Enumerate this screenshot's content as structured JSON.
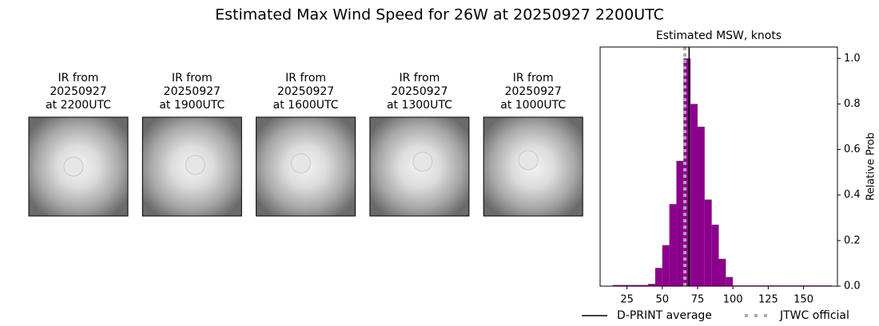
{
  "title": "Estimated Max Wind Speed for 26W at 20250927 2200UTC",
  "panels": [
    {
      "lines": [
        "IR from",
        "20250927",
        "at 2200UTC"
      ]
    },
    {
      "lines": [
        "IR from",
        "20250927",
        "at 1900UTC"
      ]
    },
    {
      "lines": [
        "IR from",
        "20250927",
        "at 1600UTC"
      ]
    },
    {
      "lines": [
        "IR from",
        "20250927",
        "at 1300UTC"
      ]
    },
    {
      "lines": [
        "IR from",
        "20250927",
        "at 1000UTC"
      ]
    }
  ],
  "chart_data": {
    "type": "histogram",
    "title": "Estimated MSW, knots",
    "y_label": "Relative Prob",
    "color": "#8b008b",
    "bins": [
      15,
      20,
      25,
      30,
      35,
      40,
      45,
      50,
      55,
      60,
      65,
      70,
      75,
      80,
      85,
      90,
      95,
      100,
      105,
      110,
      115,
      120,
      125,
      130,
      135,
      140,
      145,
      150,
      155,
      160,
      165,
      170
    ],
    "values": [
      0.005,
      0.005,
      0.005,
      0.005,
      0.005,
      0.01,
      0.08,
      0.18,
      0.36,
      0.55,
      1.0,
      0.8,
      0.7,
      0.38,
      0.27,
      0.12,
      0.04,
      0.003,
      0.003,
      0.003,
      0.003,
      0.003,
      0.003,
      0.003,
      0.003,
      0.003,
      0.003,
      0.003,
      0.003,
      0.003,
      0.003
    ],
    "xlim": [
      6,
      174
    ],
    "xticks": [
      25,
      50,
      75,
      100,
      125,
      150
    ],
    "ylim": [
      0,
      1.05
    ],
    "yticks": [
      {
        "value": 0,
        "label": "0.0"
      },
      0.2,
      0.4,
      0.6,
      0.8,
      {
        "value": 1,
        "label": "1.0"
      }
    ],
    "lines": [
      {
        "name": "D-PRINT average",
        "value": 69,
        "color": "#000000",
        "style": "solid"
      },
      {
        "name": "JTWC official",
        "value": 66,
        "color": "#aaaaaa",
        "style": "dotted"
      }
    ],
    "legend": "bottom"
  }
}
